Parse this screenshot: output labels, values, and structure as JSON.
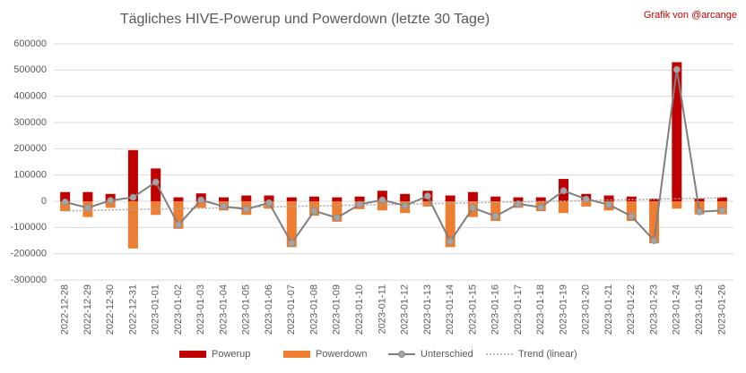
{
  "chart_data": {
    "type": "bar",
    "title": "Tägliches HIVE-Powerup und Powerdown (letzte 30 Tage)",
    "annotation": "Grafik von @arcange",
    "categories": [
      "2022-12-28",
      "2022-12-29",
      "2022-12-30",
      "2022-12-31",
      "2023-01-01",
      "2023-01-02",
      "2023-01-03",
      "2023-01-04",
      "2023-01-05",
      "2023-01-06",
      "2023-01-07",
      "2023-01-08",
      "2023-01-09",
      "2023-01-10",
      "2023-01-11",
      "2023-01-12",
      "2023-01-13",
      "2023-01-14",
      "2023-01-15",
      "2023-01-16",
      "2023-01-17",
      "2023-01-18",
      "2023-01-19",
      "2023-01-20",
      "2023-01-21",
      "2023-01-22",
      "2023-01-23",
      "2023-01-24",
      "2023-01-25",
      "2023-01-26"
    ],
    "series": [
      {
        "name": "Powerup",
        "color": "#c00000",
        "values": [
          35000,
          35000,
          28000,
          195000,
          125000,
          15000,
          30000,
          15000,
          22000,
          22000,
          15000,
          18000,
          15000,
          18000,
          40000,
          28000,
          40000,
          22000,
          35000,
          18000,
          15000,
          15000,
          85000,
          28000,
          22000,
          18000,
          10000,
          530000,
          10000,
          15000
        ]
      },
      {
        "name": "Powerdown",
        "color": "#ed7d31",
        "values": [
          -38000,
          -60000,
          -25000,
          -180000,
          -52000,
          -105000,
          -25000,
          -35000,
          -52000,
          -28000,
          -175000,
          -55000,
          -78000,
          -30000,
          -35000,
          -45000,
          -20000,
          -175000,
          -60000,
          -75000,
          -25000,
          -38000,
          -45000,
          -20000,
          -35000,
          -75000,
          -160000,
          -28000,
          -50000,
          -50000
        ]
      },
      {
        "name": "Unterschied",
        "color": "#a5a5a5",
        "values": [
          -3000,
          -25000,
          3000,
          15000,
          73000,
          -90000,
          5000,
          -20000,
          -30000,
          -6000,
          -160000,
          -37000,
          -63000,
          -12000,
          5000,
          -17000,
          20000,
          -153000,
          -25000,
          -57000,
          -10000,
          -23000,
          40000,
          8000,
          -13000,
          -57000,
          -150000,
          502000,
          -40000,
          -35000
        ]
      },
      {
        "name": "Trend (linear)",
        "color": "#a5a5a5"
      }
    ],
    "ylim": [
      -300000,
      600000
    ],
    "yticks": [
      -300000,
      -200000,
      -100000,
      0,
      100000,
      200000,
      300000,
      400000,
      500000,
      600000
    ],
    "grid": true
  }
}
